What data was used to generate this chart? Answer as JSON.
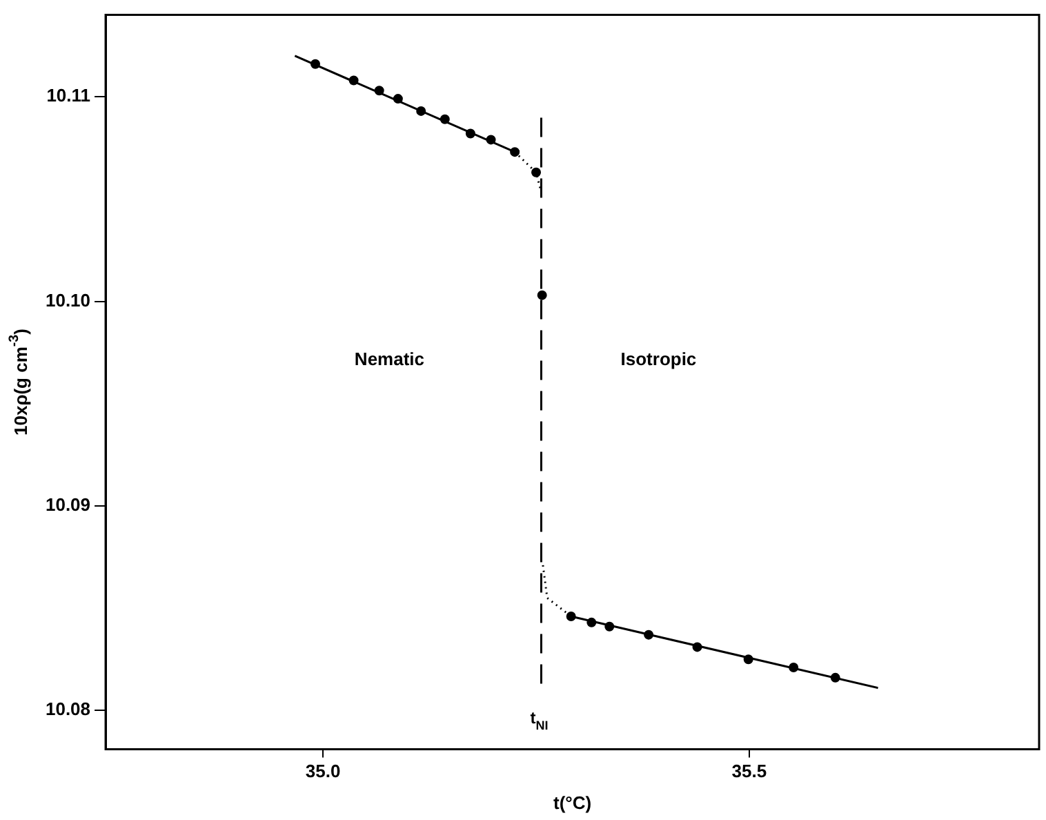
{
  "chart_data": {
    "type": "scatter",
    "xlabel": "t(°C)",
    "ylabel": "10xρ(g cm$^{-3}$)",
    "xlim": [
      34.745,
      35.84
    ],
    "ylim": [
      10.0781,
      10.114
    ],
    "xticks": [
      {
        "value": 35.0,
        "label": "35.0"
      },
      {
        "value": 35.5,
        "label": "35.5"
      }
    ],
    "yticks": [
      {
        "value": 10.08,
        "label": "10.08"
      },
      {
        "value": 10.09,
        "label": "10.09"
      },
      {
        "value": 10.1,
        "label": "10.10"
      },
      {
        "value": 10.11,
        "label": "10.11"
      }
    ],
    "grid": false,
    "legend": false,
    "marker": "circle",
    "series": [
      {
        "type": "line",
        "color": "#000000",
        "line_style": "solid",
        "marker": "none",
        "x": [
          34.967,
          35.225
        ],
        "values": [
          10.112,
          10.1073
        ]
      },
      {
        "type": "line",
        "color": "#000000",
        "line_style": "dotted",
        "marker": "none",
        "x": [
          35.225,
          35.25,
          35.255
        ],
        "values": [
          10.1073,
          10.1063,
          10.1055
        ]
      },
      {
        "type": "line",
        "color": "#000000",
        "line_style": "dotted",
        "marker": "none",
        "x": [
          35.258,
          35.263,
          35.291
        ],
        "values": [
          10.0871,
          10.0855,
          10.0846
        ]
      },
      {
        "type": "line",
        "color": "#000000",
        "line_style": "solid",
        "marker": "none",
        "x": [
          35.291,
          35.651
        ],
        "values": [
          10.0846,
          10.0811
        ]
      },
      {
        "type": "scatter",
        "color": "#000000",
        "x": [
          34.991,
          35.036,
          35.066,
          35.088,
          35.115,
          35.143,
          35.173,
          35.197,
          35.225,
          35.25,
          35.257
        ],
        "values": [
          10.1116,
          10.1108,
          10.1103,
          10.1099,
          10.1093,
          10.1089,
          10.1082,
          10.1079,
          10.1073,
          10.1063,
          10.1003
        ]
      },
      {
        "type": "scatter",
        "color": "#000000",
        "x": [
          35.291,
          35.315,
          35.336,
          35.382,
          35.439,
          35.499,
          35.552,
          35.601
        ],
        "values": [
          10.0846,
          10.0843,
          10.0841,
          10.0837,
          10.0831,
          10.0825,
          10.0821,
          10.0816
        ]
      }
    ],
    "ref_lines": [
      {
        "axis": "x",
        "value": 35.256,
        "label": "t$_{NI}$",
        "line_style": "dashed",
        "color": "#000000"
      }
    ],
    "annotations": [
      "Nematic",
      "Isotropic"
    ]
  }
}
